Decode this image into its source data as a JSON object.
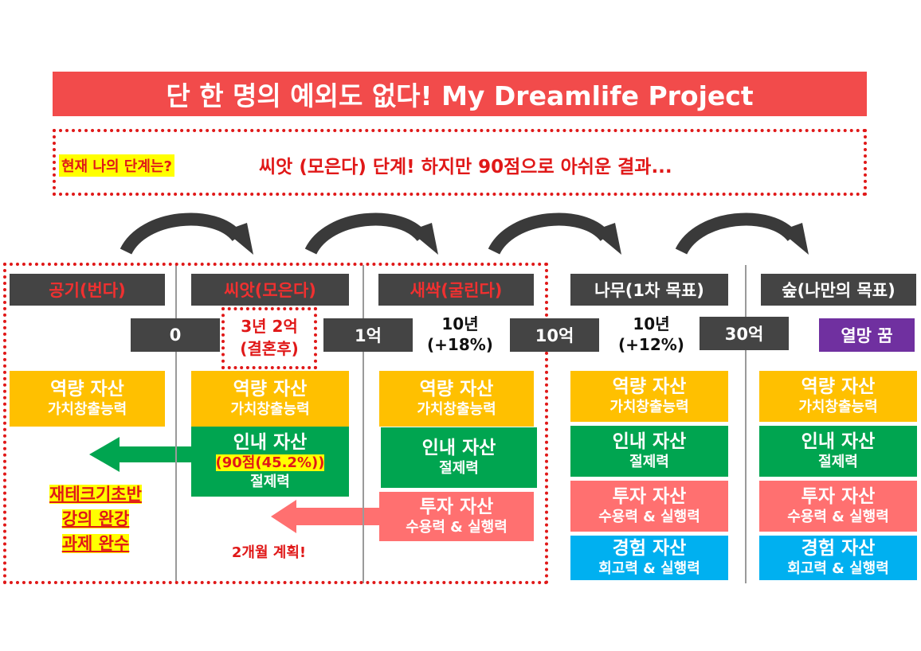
{
  "title": "단 한 명의 예외도 없다! My Dreamlife Project",
  "status": {
    "question": "현재 나의 단계는?",
    "answer": "씨앗 (모은다) 단계! 하지만 90점으로 아쉬운 결과..."
  },
  "stages": [
    {
      "label": "공기(번다)"
    },
    {
      "label": "씨앗(모은다)"
    },
    {
      "label": "새싹(굴린다)"
    },
    {
      "label": "나무(1차 목표)"
    },
    {
      "label": "숲(나만의 목표)"
    }
  ],
  "amounts": [
    "0",
    "1억",
    "10억",
    "30억"
  ],
  "marriage_note": {
    "line1": "3년 2억",
    "line2": "(결혼후)"
  },
  "growth_notes": [
    {
      "line1": "10년",
      "line2": "(+18%)"
    },
    {
      "line1": "10년",
      "line2": "(+12%)"
    }
  ],
  "dream": "열망 꿈",
  "assets": {
    "capability": {
      "title": "역량 자산",
      "sub": "가치창출능력"
    },
    "patience": {
      "title": "인내 자산",
      "sub": "절제력"
    },
    "investment": {
      "title": "투자 자산",
      "sub": "수용력 & 실행력"
    },
    "experience": {
      "title": "경험 자산",
      "sub": "회고력 & 실행력"
    }
  },
  "score_note": "(90점(45.2%))",
  "homework": [
    "재테크기초반",
    "강의 완강",
    "과제 완수"
  ],
  "plan": "2개월 계획!",
  "colors": {
    "title_bg": "#f24b4b",
    "accent_red": "#e01818",
    "capability": "#ffc000",
    "patience": "#00a550",
    "investment": "#ff7070",
    "experience": "#00b0f0",
    "dream": "#7030a0",
    "dark_box": "#444444"
  }
}
